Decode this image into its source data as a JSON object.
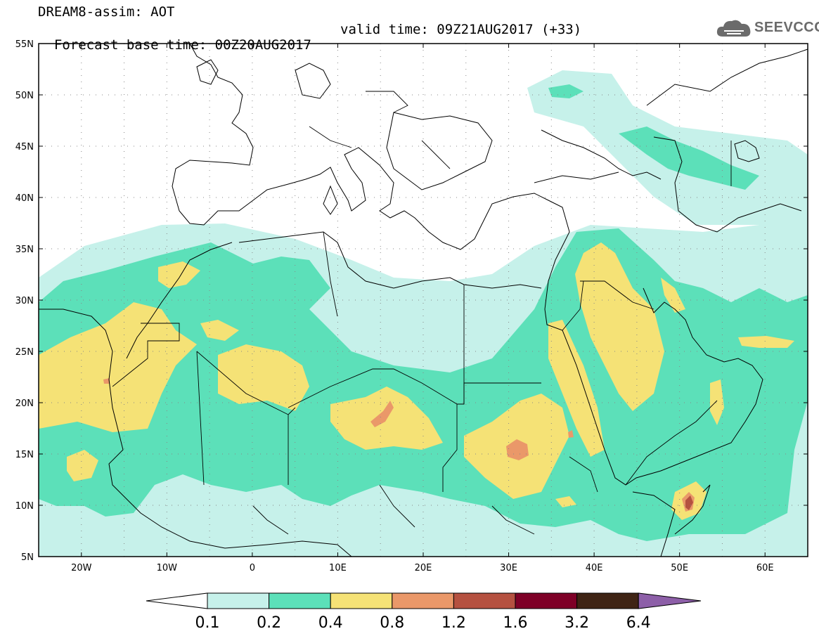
{
  "header": {
    "line1": "DREAM8-assim: AOT",
    "line2": "Forecast base time: 00Z20AUG2017",
    "valid": "valid time: 09Z21AUG2017 (+33)"
  },
  "logo": {
    "text": "SEEVCCC",
    "icon": "cloud-icon"
  },
  "map": {
    "lat_labels": [
      "55N",
      "50N",
      "45N",
      "40N",
      "35N",
      "30N",
      "25N",
      "20N",
      "15N",
      "10N",
      "5N"
    ],
    "lon_labels": [
      "20W",
      "10W",
      "0",
      "10E",
      "20E",
      "30E",
      "40E",
      "50E",
      "60E"
    ],
    "lat_range": [
      5,
      55
    ],
    "lon_range": [
      -25,
      65
    ],
    "grid": true
  },
  "colorbar": {
    "levels": [
      "0.1",
      "0.2",
      "0.4",
      "0.8",
      "1.2",
      "1.6",
      "3.2",
      "6.4"
    ],
    "colors": [
      "#c6f1ea",
      "#5ce0b9",
      "#f5e276",
      "#ea9869",
      "#b55140",
      "#7e0027",
      "#3f2414",
      "#8d5fa8"
    ]
  }
}
